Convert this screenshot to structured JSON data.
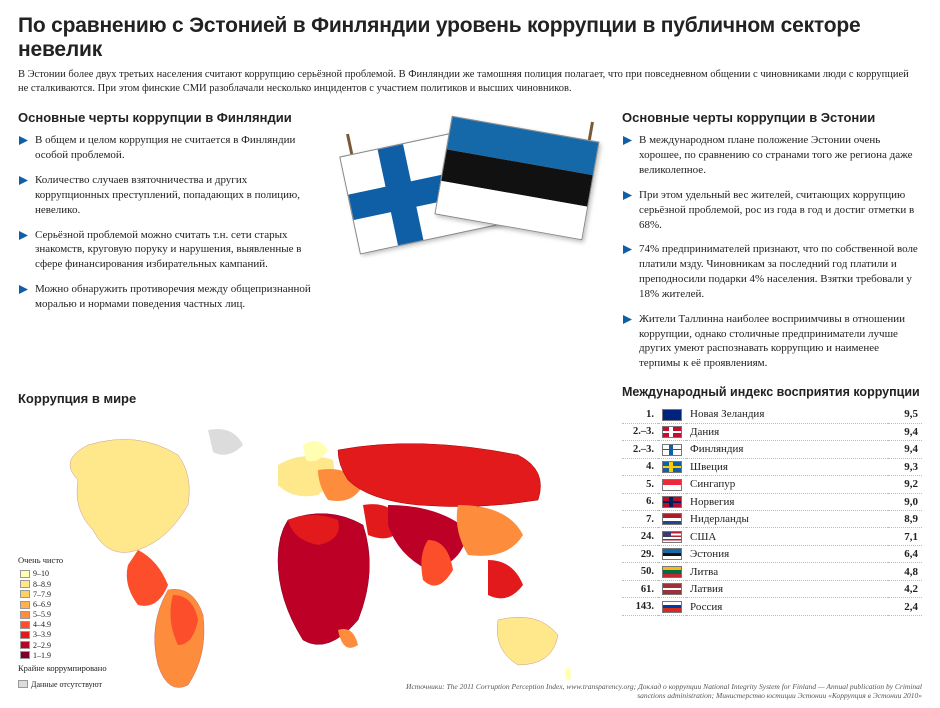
{
  "headline": "По сравнению с Эстонией в Финляндии уровень коррупции в публичном секторе невелик",
  "intro": "В Эстонии более двух третьих населения считают коррупцию серьёзной проблемой. В Финляндии же тамошняя полиция полагает, что при повседневном общении с чиновниками люди с коррупцией не сталкиваются. При этом финские СМИ разоблачали несколько инцидентов с участием политиков и высших чиновников.",
  "finland": {
    "title": "Основные черты коррупции в Финляндии",
    "items": [
      "В общем и целом коррупция не считается в Финляндии особой проблемой.",
      "Количество случаев взяточничества и других коррупционных преступлений, попадающих в полицию, невелико.",
      "Серьёзной проблемой можно считать т.н. сети старых знакомств, круговую поруку и нарушения, выявленные в сфере финансирования избирательных кампаний.",
      "Можно обнаружить противоречия между общепризнанной моралью и нормами поведения частных лиц."
    ]
  },
  "estonia": {
    "title": "Основные черты коррупции в Эстонии",
    "items": [
      "В международном плане положение Эстонии очень хорошее, по сравнению со странами того же региона даже великолепное.",
      "При этом удельный вес жителей, считающих коррупцию серьёзной проблемой, рос из года в год и достиг отметки в 68%.",
      "74% предпринимателей признают, что по собственной воле платили мзду. Чиновникам за последний год платили и преподносили подарки 4% населения. Взятки требовали у 18% жителей.",
      "Жители Таллинна наиболее восприимчивы в отношении коррупции, однако столичные предприниматели лучше других умеют распознавать коррупцию и наименее терпимы к её проявлениям."
    ]
  },
  "bullet_color": "#0f5fa6",
  "map": {
    "title": "Коррупция в мире",
    "legend_top": "Очень чисто",
    "legend_bottom": "Крайне коррумпировано",
    "nodata": "Данные отсутствуют",
    "bands": [
      {
        "label": "9–10",
        "color": "#ffffb2"
      },
      {
        "label": "8–8.9",
        "color": "#fee88b"
      },
      {
        "label": "7–7.9",
        "color": "#fed165"
      },
      {
        "label": "6–6.9",
        "color": "#feb24c"
      },
      {
        "label": "5–5.9",
        "color": "#fd8d3c"
      },
      {
        "label": "4–4.9",
        "color": "#fc4e2a"
      },
      {
        "label": "3–3.9",
        "color": "#e31a1c"
      },
      {
        "label": "2–2.9",
        "color": "#bd0026"
      },
      {
        "label": "1–1.9",
        "color": "#800026"
      }
    ]
  },
  "index": {
    "title": "Международный индекс восприятия коррупции",
    "rows": [
      {
        "rank": "1.",
        "country": "Новая Зеландия",
        "score": "9,5",
        "flag": {
          "type": "stripes",
          "colors": [
            "#00247d"
          ],
          "stars": true
        }
      },
      {
        "rank": "2.–3.",
        "country": "Дания",
        "score": "9,4",
        "flag": {
          "type": "nordic",
          "bg": "#c60c30",
          "cross": "#fff"
        }
      },
      {
        "rank": "2.–3.",
        "country": "Финляндия",
        "score": "9,4",
        "flag": {
          "type": "nordic",
          "bg": "#fff",
          "cross": "#0f5fa6"
        }
      },
      {
        "rank": "4.",
        "country": "Швеция",
        "score": "9,3",
        "flag": {
          "type": "nordic",
          "bg": "#0f5fa6",
          "cross": "#fecc00"
        }
      },
      {
        "rank": "5.",
        "country": "Сингапур",
        "score": "9,2",
        "flag": {
          "type": "hstripes",
          "colors": [
            "#ed2939",
            "#fff"
          ]
        }
      },
      {
        "rank": "6.",
        "country": "Норвегия",
        "score": "9,0",
        "flag": {
          "type": "nordic",
          "bg": "#ba0c2f",
          "cross": "#00205b",
          "outline": "#fff"
        }
      },
      {
        "rank": "7.",
        "country": "Нидерланды",
        "score": "8,9",
        "flag": {
          "type": "hstripes",
          "colors": [
            "#ae1c28",
            "#fff",
            "#21468b"
          ]
        }
      },
      {
        "rank": "24.",
        "country": "США",
        "score": "7,1",
        "flag": {
          "type": "usa"
        }
      },
      {
        "rank": "29.",
        "country": "Эстония",
        "score": "6,4",
        "flag": {
          "type": "hstripes",
          "colors": [
            "#1569a8",
            "#111",
            "#fff"
          ]
        }
      },
      {
        "rank": "50.",
        "country": "Литва",
        "score": "4,8",
        "flag": {
          "type": "hstripes",
          "colors": [
            "#fdb913",
            "#006a44",
            "#c1272d"
          ]
        }
      },
      {
        "rank": "61.",
        "country": "Латвия",
        "score": "4,2",
        "flag": {
          "type": "hstripes",
          "colors": [
            "#9e3039",
            "#fff",
            "#9e3039"
          ],
          "ratios": [
            2,
            1,
            2
          ]
        }
      },
      {
        "rank": "143.",
        "country": "Россия",
        "score": "2,4",
        "flag": {
          "type": "hstripes",
          "colors": [
            "#fff",
            "#0039a6",
            "#d52b1e"
          ]
        }
      }
    ]
  },
  "source": "Источники: The 2011 Corruption Perception Index, www.transparency.org; Доклад о коррупции National Integrity System for Finland — Annual publication by Criminal sanctions administration; Министерство юстиции Эстонии «Коррупция в Эстонии 2010»"
}
